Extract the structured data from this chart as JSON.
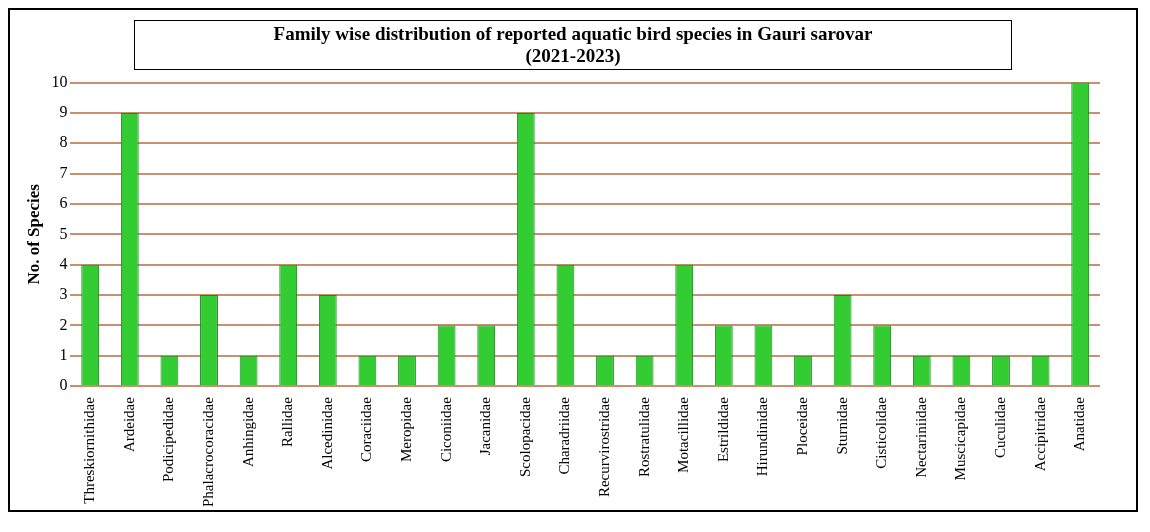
{
  "chart_data": {
    "type": "bar",
    "title": "Family wise distribution of reported aquatic bird species in Gauri sarovar\n(2021-2023)",
    "ylabel": "No. of Species",
    "categories": [
      "Threskiornithidae",
      "Ardeidae",
      "Podicipedidae",
      "Phalacrocoracidae",
      "Anhingidae",
      "Rallidae",
      "Alcedinidae",
      "Coraciidae",
      "Meropidae",
      "Ciconiidae",
      "Jacanidae",
      "Scolopacidae",
      "Charadriidae",
      "Recurvirostridae",
      "Rostratulidae",
      "Motacillidae",
      "Estrildidae",
      "Hirundinidae",
      "Ploceidae",
      "Sturnidae",
      "Cisticolidae",
      "Nectariniidae",
      "Muscicapidae",
      "Cuculidae",
      "Accipitridae",
      "Anatidae"
    ],
    "values": [
      4,
      9,
      1,
      3,
      1,
      4,
      3,
      1,
      1,
      2,
      2,
      9,
      4,
      1,
      1,
      4,
      2,
      2,
      1,
      3,
      2,
      1,
      1,
      1,
      1,
      10
    ],
    "color": "#33cc33",
    "ylim": [
      0,
      10
    ],
    "yticks": [
      0,
      1,
      2,
      3,
      4,
      5,
      6,
      7,
      8,
      9,
      10
    ],
    "grid": "y",
    "legend": false
  }
}
